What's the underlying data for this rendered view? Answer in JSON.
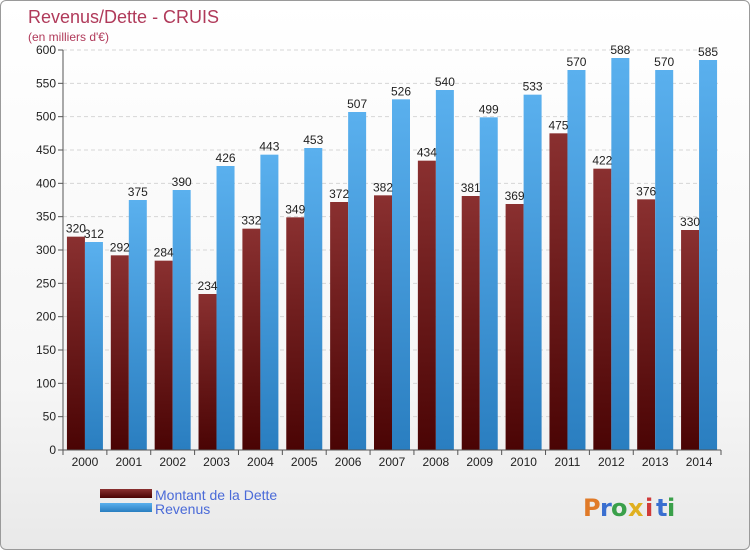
{
  "chart_data": {
    "type": "bar",
    "title": "Revenus/Dette - CRUIS",
    "subtitle": "(en milliers d'€)",
    "categories": [
      "2000",
      "2001",
      "2002",
      "2003",
      "2004",
      "2005",
      "2006",
      "2007",
      "2008",
      "2009",
      "2010",
      "2011",
      "2012",
      "2013",
      "2014"
    ],
    "series": [
      {
        "name": "Montant de la Dette",
        "color": "#7a1a1a",
        "values": [
          320,
          292,
          284,
          234,
          332,
          349,
          372,
          382,
          434,
          381,
          369,
          475,
          422,
          376,
          330
        ]
      },
      {
        "name": "Revenus",
        "color": "#3a9ee0",
        "values": [
          312,
          375,
          390,
          426,
          443,
          453,
          507,
          526,
          540,
          499,
          533,
          570,
          588,
          570,
          585
        ]
      }
    ],
    "ylim": [
      0,
      600
    ],
    "yticks": [
      0,
      50,
      100,
      150,
      200,
      250,
      300,
      350,
      400,
      450,
      500,
      550,
      600
    ],
    "grid": true,
    "legend": "bottom-left"
  },
  "brand": {
    "letters": [
      "P",
      "r",
      "o",
      "x",
      "i",
      "t",
      "i"
    ],
    "colors": [
      "#e07a28",
      "#3a6fd0",
      "#3aa04a",
      "#e0b020",
      "#d03a3a",
      "#3a6fd0",
      "#3aa04a"
    ]
  }
}
